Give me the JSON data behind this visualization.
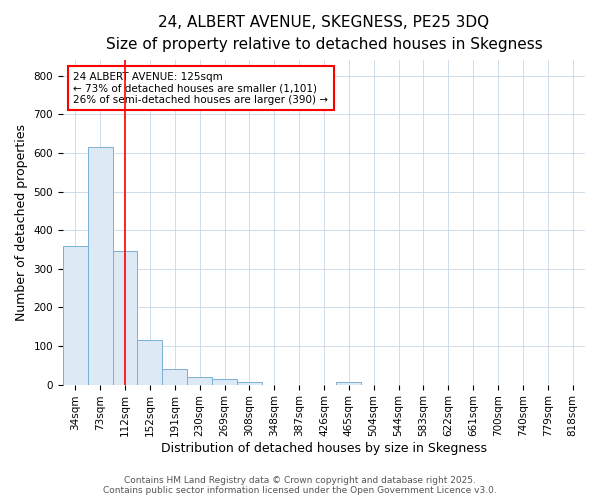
{
  "title": "24, ALBERT AVENUE, SKEGNESS, PE25 3DQ",
  "subtitle": "Size of property relative to detached houses in Skegness",
  "xlabel": "Distribution of detached houses by size in Skegness",
  "ylabel": "Number of detached properties",
  "categories": [
    "34sqm",
    "73sqm",
    "112sqm",
    "152sqm",
    "191sqm",
    "230sqm",
    "269sqm",
    "308sqm",
    "348sqm",
    "387sqm",
    "426sqm",
    "465sqm",
    "504sqm",
    "544sqm",
    "583sqm",
    "622sqm",
    "661sqm",
    "700sqm",
    "740sqm",
    "779sqm",
    "818sqm"
  ],
  "values": [
    360,
    615,
    345,
    115,
    40,
    20,
    15,
    8,
    0,
    0,
    0,
    8,
    0,
    0,
    0,
    0,
    0,
    0,
    0,
    0,
    0
  ],
  "bar_color": "#ddeaf5",
  "bar_edge_color": "#7aafd4",
  "red_line_x": 2.0,
  "annotation_text_line1": "24 ALBERT AVENUE: 125sqm",
  "annotation_text_line2": "← 73% of detached houses are smaller (1,101)",
  "annotation_text_line3": "26% of semi-detached houses are larger (390) →",
  "footer1": "Contains HM Land Registry data © Crown copyright and database right 2025.",
  "footer2": "Contains public sector information licensed under the Open Government Licence v3.0.",
  "bg_color": "#ffffff",
  "grid_color": "#c8d8e8",
  "ylim": [
    0,
    840
  ],
  "yticks": [
    0,
    100,
    200,
    300,
    400,
    500,
    600,
    700,
    800
  ],
  "title_fontsize": 11,
  "subtitle_fontsize": 9.5,
  "axis_fontsize": 9,
  "tick_fontsize": 7.5,
  "footer_fontsize": 6.5
}
